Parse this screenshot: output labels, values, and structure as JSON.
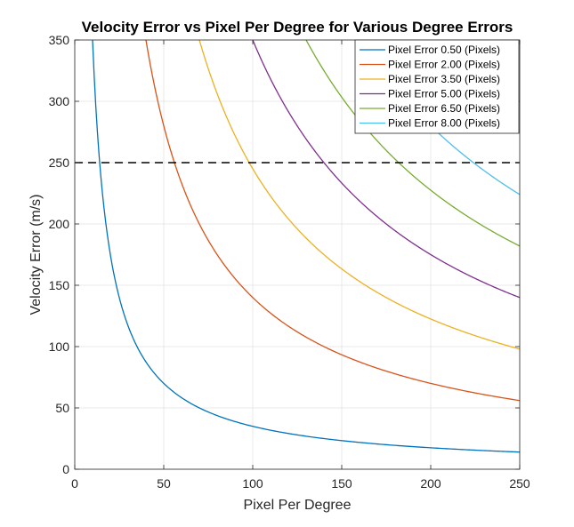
{
  "chart_data": {
    "type": "line",
    "title": "Velocity Error vs Pixel Per Degree for Various Degree Errors",
    "xlabel": "Pixel Per Degree",
    "ylabel": "Velocity Error (m/s)",
    "xlim": [
      0,
      250
    ],
    "ylim": [
      0,
      350
    ],
    "xticks": [
      0,
      50,
      100,
      150,
      200,
      250
    ],
    "yticks": [
      0,
      50,
      100,
      150,
      200,
      250,
      300,
      350
    ],
    "grid": true,
    "legend_position": "top-right",
    "model": "y = k / x",
    "x": [
      10,
      15,
      20,
      25,
      30,
      40,
      50,
      60,
      70,
      80,
      100,
      125,
      150,
      175,
      200,
      225,
      250
    ],
    "series": [
      {
        "name": "Pixel Error 0.50 (Pixels)",
        "color": "#0072BD",
        "k": 3500,
        "values": [
          350,
          233.3,
          175,
          140,
          116.7,
          87.5,
          70,
          58.3,
          50,
          43.8,
          35,
          28,
          23.3,
          20,
          17.5,
          15.6,
          14
        ]
      },
      {
        "name": "Pixel Error 2.00 (Pixels)",
        "color": "#D95319",
        "k": 14000,
        "values": [
          null,
          null,
          null,
          null,
          null,
          350,
          280,
          233.3,
          200,
          175,
          140,
          112,
          93.3,
          80,
          70,
          62.2,
          56
        ]
      },
      {
        "name": "Pixel Error 3.50 (Pixels)",
        "color": "#EDB120",
        "k": 24500,
        "values": [
          null,
          null,
          null,
          null,
          null,
          null,
          null,
          null,
          350,
          306.3,
          245,
          196,
          163.3,
          140,
          122.5,
          108.9,
          98
        ]
      },
      {
        "name": "Pixel Error 5.00 (Pixels)",
        "color": "#7E2F8E",
        "k": 35000,
        "values": [
          null,
          null,
          null,
          null,
          null,
          null,
          null,
          null,
          null,
          null,
          350,
          280,
          233.3,
          200,
          175,
          155.6,
          140
        ]
      },
      {
        "name": "Pixel Error 6.50 (Pixels)",
        "color": "#77AC30",
        "k": 45500,
        "values": [
          null,
          null,
          null,
          null,
          null,
          null,
          null,
          null,
          null,
          null,
          null,
          null,
          303.3,
          260,
          227.5,
          202.2,
          182
        ]
      },
      {
        "name": "Pixel Error 8.00 (Pixels)",
        "color": "#4DBEEE",
        "k": 56000,
        "values": [
          null,
          null,
          null,
          null,
          null,
          null,
          null,
          null,
          null,
          null,
          null,
          null,
          null,
          320,
          280,
          248.9,
          224
        ]
      }
    ],
    "threshold": {
      "y": 250,
      "style": "dashed",
      "color": "#000000"
    }
  }
}
